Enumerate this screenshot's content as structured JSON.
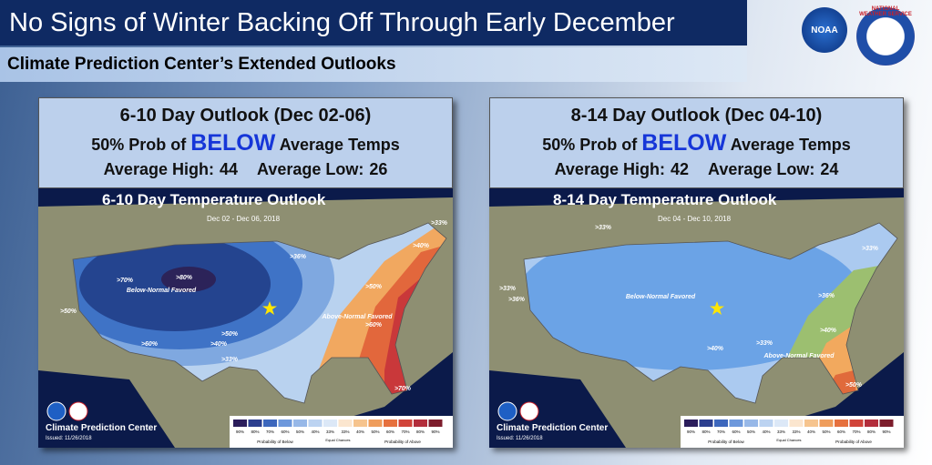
{
  "header": {
    "title": "No Signs of Winter Backing Off Through Early December",
    "subtitle": "Climate Prediction Center’s Extended Outlooks",
    "logos": [
      "NOAA",
      "NATIONAL WEATHER SERVICE"
    ]
  },
  "panels": [
    {
      "heading": "6-10 Day Outlook (Dec 02-06)",
      "prob": "50% Prob of",
      "emphasis": "BELOW",
      "suffix": "Average Temps",
      "high_label": "Average High:",
      "high": 44,
      "low_label": "Average Low:",
      "low": 26,
      "map": {
        "title": "6-10 Day Temperature Outlook",
        "dates": "Dec 02 - Dec 06, 2018",
        "labels": [
          ">80%",
          ">70%",
          ">60%",
          ">50%",
          ">50%",
          ">40%",
          ">33%",
          ">36%",
          ">40%",
          ">50%",
          ">60%",
          ">70%",
          ">33%",
          "Below-Normal Favored",
          "Above-Normal Favored"
        ],
        "credit": "Climate Prediction Center",
        "issued": "Issued: 11/26/2018"
      }
    },
    {
      "heading": "8-14 Day Outlook (Dec 04-10)",
      "prob": "50% Prob of",
      "emphasis": "BELOW",
      "suffix": "Average Temps",
      "high_label": "Average High:",
      "high": 42,
      "low_label": "Average Low:",
      "low": 24,
      "map": {
        "title": "8-14 Day Temperature Outlook",
        "dates": "Dec 04 - Dec 10, 2018",
        "labels": [
          ">33%",
          ">33%",
          ">36%",
          ">40%",
          ">33%",
          ">36%",
          ">33%",
          ">40%",
          ">50%",
          "Below-Normal Favored",
          "Above-Normal Favored"
        ],
        "credit": "Climate Prediction Center",
        "issued": "Issued: 11/26/2018"
      }
    }
  ],
  "legend": {
    "steps": [
      "90%",
      "80%",
      "70%",
      "60%",
      "50%",
      "40%",
      "33%",
      "33%",
      "40%",
      "50%",
      "60%",
      "70%",
      "80%",
      "90%"
    ],
    "below": "Probability of Below",
    "equal": "Equal Chances",
    "above": "Probability of Above"
  }
}
